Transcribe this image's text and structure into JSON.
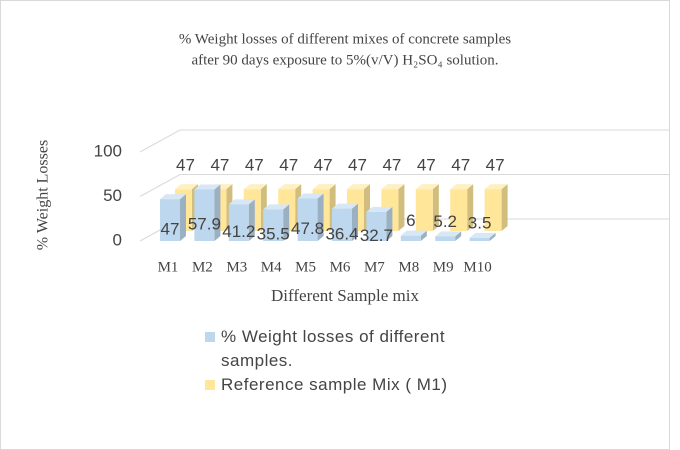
{
  "chart_data": {
    "type": "bar3d",
    "title": [
      "% Weight losses of different mixes of concrete samples",
      "after 90 days exposure to 5%(v/V) H₂SO₄ solution."
    ],
    "x_label": "Different Sample mix",
    "y_label": "% Weight Losses",
    "categories": [
      "M1",
      "M2",
      "M3",
      "M4",
      "M5",
      "M6",
      "M7",
      "M8",
      "M9",
      "M10"
    ],
    "series": [
      {
        "name": "% Weight losses of different samples.",
        "color": "#bdd7ee",
        "values": [
          47,
          57.9,
          41.2,
          35.5,
          47.8,
          36.4,
          32.7,
          6,
          5.2,
          3.5
        ]
      },
      {
        "name": "Reference sample Mix ( M1)",
        "color": "#ffe699",
        "values": [
          47,
          47,
          47,
          47,
          47,
          47,
          47,
          47,
          47,
          47
        ]
      }
    ],
    "ylim": [
      0,
      100
    ],
    "yticks": [
      0,
      50,
      100
    ],
    "grid": true,
    "legend": "bottom"
  }
}
